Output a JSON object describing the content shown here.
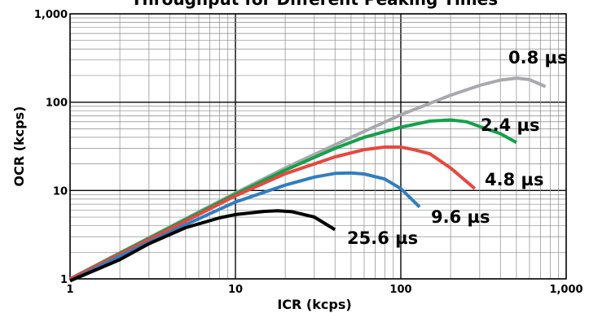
{
  "chart_data": {
    "type": "line",
    "title": "Throughput for Different Peaking Times",
    "xlabel": "ICR (kcps)",
    "ylabel": "OCR (kcps)",
    "x_scale": "log",
    "y_scale": "log",
    "xlim": [
      1,
      1000
    ],
    "ylim": [
      1,
      1000
    ],
    "grid": true,
    "x_ticks": [
      {
        "value": 1,
        "label": "1"
      },
      {
        "value": 10,
        "label": "10"
      },
      {
        "value": 100,
        "label": "100"
      },
      {
        "value": 1000,
        "label": "1,000"
      }
    ],
    "y_ticks": [
      {
        "value": 1,
        "label": "1"
      },
      {
        "value": 10,
        "label": "10"
      },
      {
        "value": 100,
        "label": "100"
      },
      {
        "value": 1000,
        "label": "1,000"
      }
    ],
    "series": [
      {
        "name": "0.8 µs",
        "color": "#a7a9ac",
        "points": [
          [
            1,
            1
          ],
          [
            2,
            1.97
          ],
          [
            5,
            4.8
          ],
          [
            10,
            9.4
          ],
          [
            20,
            18
          ],
          [
            50,
            40
          ],
          [
            100,
            72
          ],
          [
            200,
            120
          ],
          [
            300,
            155
          ],
          [
            400,
            178
          ],
          [
            500,
            187
          ],
          [
            600,
            180
          ],
          [
            750,
            150
          ]
        ]
      },
      {
        "name": "2.4 µs",
        "color": "#15a04a",
        "points": [
          [
            1,
            1
          ],
          [
            2,
            1.95
          ],
          [
            5,
            4.7
          ],
          [
            10,
            9.1
          ],
          [
            20,
            17
          ],
          [
            40,
            30
          ],
          [
            60,
            40
          ],
          [
            100,
            52
          ],
          [
            150,
            61
          ],
          [
            200,
            63
          ],
          [
            250,
            60
          ],
          [
            300,
            53
          ],
          [
            400,
            44
          ],
          [
            500,
            35
          ]
        ]
      },
      {
        "name": "4.8 µs",
        "color": "#e8473e",
        "points": [
          [
            1,
            1
          ],
          [
            2,
            1.9
          ],
          [
            5,
            4.5
          ],
          [
            10,
            8.7
          ],
          [
            20,
            15.5
          ],
          [
            40,
            24
          ],
          [
            60,
            29
          ],
          [
            80,
            31
          ],
          [
            100,
            31
          ],
          [
            120,
            29
          ],
          [
            150,
            26
          ],
          [
            200,
            18
          ],
          [
            280,
            10.5
          ]
        ]
      },
      {
        "name": "9.6 µs",
        "color": "#2f7ec2",
        "points": [
          [
            1,
            0.95
          ],
          [
            2,
            1.8
          ],
          [
            5,
            4.1
          ],
          [
            10,
            7.4
          ],
          [
            20,
            11.5
          ],
          [
            30,
            14.2
          ],
          [
            40,
            15.6
          ],
          [
            50,
            15.8
          ],
          [
            60,
            15.4
          ],
          [
            80,
            13.5
          ],
          [
            100,
            10.5
          ],
          [
            130,
            6.5
          ]
        ]
      },
      {
        "name": "25.6 µs",
        "color": "#000000",
        "points": [
          [
            1,
            0.95
          ],
          [
            2,
            1.65
          ],
          [
            3,
            2.5
          ],
          [
            5,
            3.8
          ],
          [
            8,
            4.9
          ],
          [
            10,
            5.35
          ],
          [
            15,
            5.8
          ],
          [
            18,
            5.9
          ],
          [
            22,
            5.75
          ],
          [
            30,
            5.0
          ],
          [
            40,
            3.6
          ]
        ]
      }
    ],
    "annotations": [
      {
        "text": "0.8 µs",
        "series": "0.8 µs"
      },
      {
        "text": "2.4 µs",
        "series": "2.4 µs"
      },
      {
        "text": "4.8 µs",
        "series": "4.8 µs"
      },
      {
        "text": "9.6 µs",
        "series": "9.6 µs"
      },
      {
        "text": "25.6 µs",
        "series": "25.6 µs"
      }
    ]
  }
}
